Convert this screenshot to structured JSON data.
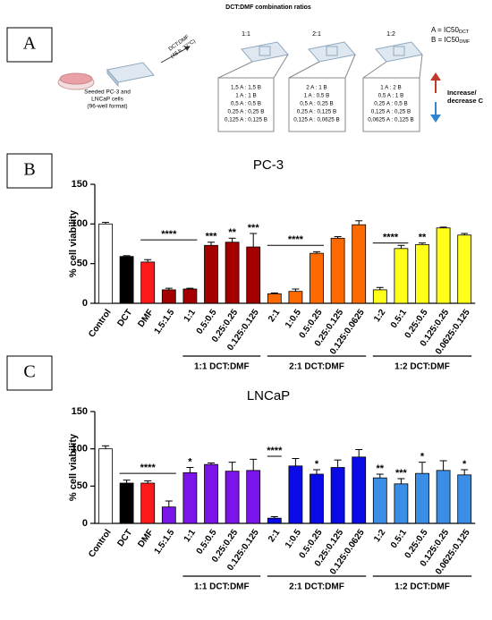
{
  "diagram": {
    "panel_labels": [
      "A",
      "B",
      "C"
    ],
    "header": "DCT:DMF combination ratios",
    "seeding": [
      "Seeded PC-3 and",
      "LNCaP cells",
      "(96-well format)"
    ],
    "treatment": [
      "DCT:DMF",
      "(48 h, 37°C)"
    ],
    "plates": [
      {
        "ratio": "1:1",
        "doses": [
          "1,5 A : 1,5 B",
          "1 A : 1 B",
          "0,5 A : 0,5 B",
          "0,25 A : 0,25 B",
          "0,125 A : 0,125 B"
        ]
      },
      {
        "ratio": "2:1",
        "doses": [
          "2 A : 1 B",
          "1 A : 0,5 B",
          "0,5 A : 0,25 B",
          "0,25 A : 0,125 B",
          "0,125 A : 0,0625 B"
        ]
      },
      {
        "ratio": "1:2",
        "doses": [
          "1 A : 2 B",
          "0,5 A : 1 B",
          "0,25 A : 0,5 B",
          "0,125 A : 0,25 B",
          "0,0625 A : 0,125 B"
        ]
      }
    ],
    "legend": [
      {
        "text": "A = IC50",
        "sub": "DCT"
      },
      {
        "text": "B = IC50",
        "sub": "DMF"
      }
    ],
    "gradient": [
      "Increase/",
      "decrease C"
    ]
  },
  "chart_data": [
    {
      "type": "bar",
      "title": "PC-3",
      "y_label": "% cell viability",
      "categories": [
        "Control",
        "DCT",
        "DMF",
        "1.5:1.5",
        "1:1",
        "0.5:0.5",
        "0.25:0.25",
        "0.125:0.125",
        "2:1",
        "1:0.5",
        "0.5:0.25",
        "0.25:0.125",
        "0.125:0.0625",
        "1:2",
        "0.5:1",
        "0.25:0.5",
        "0.125:0.25",
        "0.0625:0.125"
      ],
      "values": [
        100,
        59,
        52,
        17,
        18,
        73,
        77,
        71,
        12,
        15,
        63,
        82,
        99,
        17,
        69,
        74,
        95,
        86
      ],
      "errors": [
        2,
        1,
        3,
        2,
        1,
        4,
        5,
        17,
        1,
        3,
        2,
        2,
        5,
        3,
        4,
        2,
        1,
        2
      ],
      "colors": [
        "#ffffff",
        "#000000",
        "#ff1a1a",
        "#a50000",
        "#a50000",
        "#a50000",
        "#a50000",
        "#a50000",
        "#ff6a00",
        "#ff6a00",
        "#ff6a00",
        "#ff6a00",
        "#ff6a00",
        "#ffff1a",
        "#ffff1a",
        "#ffff1a",
        "#ffff1a",
        "#ffff1a"
      ],
      "significance": [
        null,
        null,
        null,
        null,
        null,
        "***",
        "**",
        "***",
        null,
        null,
        null,
        null,
        null,
        null,
        null,
        "**",
        null,
        null
      ],
      "significance_lines": [
        {
          "text": "****",
          "from": "DMF",
          "to": "1:1",
          "y": 80
        },
        {
          "text": "****",
          "from": "2:1",
          "to": "0.5:0.25",
          "y": 73
        },
        {
          "text": "****",
          "from": "1:2",
          "to": "0.5:1",
          "y": 76
        }
      ],
      "groups": [
        {
          "label": "1:1 DCT:DMF",
          "from": "1:1",
          "to": "0.125:0.125"
        },
        {
          "label": "2:1 DCT:DMF",
          "from": "2:1",
          "to": "0.125:0.0625"
        },
        {
          "label": "1:2 DCT:DMF",
          "from": "1:2",
          "to": "0.0625:0.125"
        }
      ],
      "ylim": [
        0,
        150
      ],
      "yticks": [
        0,
        50,
        100,
        150
      ]
    },
    {
      "type": "bar",
      "title": "LNCaP",
      "y_label": "% cell viability",
      "categories": [
        "Control",
        "DCT",
        "DMF",
        "1.5:1.5",
        "1:1",
        "0.5:0.5",
        "0.25:0.25",
        "0.125:0.125",
        "2:1",
        "1:0.5",
        "0.5:0.25",
        "0.25:0.125",
        "0.125:0.0625",
        "1:2",
        "0.5:1",
        "0.25:0.5",
        "0.125:0.25",
        "0.0625:0.125"
      ],
      "values": [
        100,
        54,
        54,
        22,
        68,
        79,
        70,
        71,
        7,
        77,
        66,
        75,
        89,
        61,
        53,
        67,
        71,
        65
      ],
      "errors": [
        4,
        4,
        3,
        8,
        7,
        2,
        12,
        15,
        2,
        10,
        6,
        10,
        10,
        5,
        7,
        15,
        13,
        7
      ],
      "colors": [
        "#ffffff",
        "#000000",
        "#ff1a1a",
        "#7a14e8",
        "#7a14e8",
        "#7a14e8",
        "#7a14e8",
        "#7a14e8",
        "#0a0ae6",
        "#0a0ae6",
        "#0a0ae6",
        "#0a0ae6",
        "#0a0ae6",
        "#3b8ee6",
        "#3b8ee6",
        "#3b8ee6",
        "#3b8ee6",
        "#3b8ee6"
      ],
      "significance": [
        null,
        null,
        null,
        null,
        "*",
        null,
        null,
        null,
        null,
        null,
        "*",
        null,
        null,
        "**",
        "***",
        "*",
        null,
        "*"
      ],
      "significance_lines": [
        {
          "text": "****",
          "from": "DCT",
          "to": "1.5:1.5",
          "y": 67
        },
        {
          "text": "****",
          "from": "2:1",
          "to": "2:1",
          "y": 90
        }
      ],
      "groups": [
        {
          "label": "1:1 DCT:DMF",
          "from": "1:1",
          "to": "0.125:0.125"
        },
        {
          "label": "2:1 DCT:DMF",
          "from": "2:1",
          "to": "0.125:0.0625"
        },
        {
          "label": "1:2 DCT:DMF",
          "from": "1:2",
          "to": "0.0625:0.125"
        }
      ],
      "ylim": [
        0,
        150
      ],
      "yticks": [
        0,
        50,
        100,
        150
      ]
    }
  ]
}
